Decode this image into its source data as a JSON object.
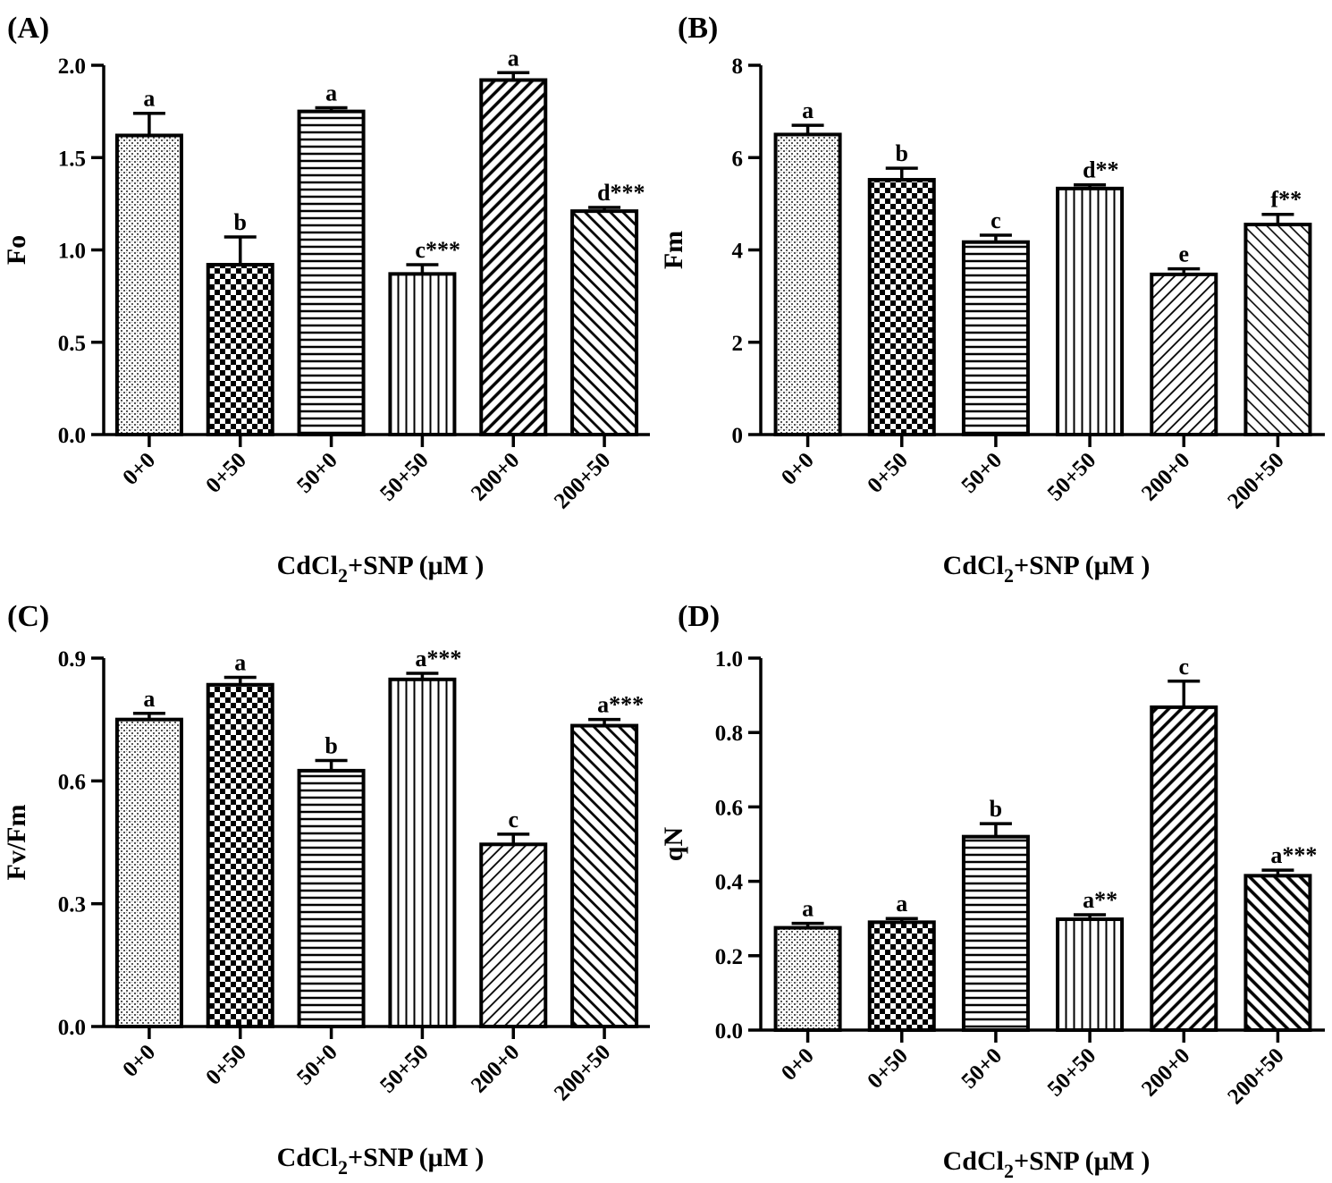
{
  "figure": {
    "shared_categories": [
      "0+0",
      "0+50",
      "50+0",
      "50+50",
      "200+0",
      "200+50"
    ],
    "x_axis_label_main": "CdCl",
    "x_axis_label_sub": "2",
    "x_axis_label_rest": "+SNP (μM )"
  },
  "chart_data": [
    {
      "panel": "(A)",
      "type": "bar",
      "ylabel": "Fo",
      "ylim": [
        0,
        2.0
      ],
      "yticks": [
        0.0,
        0.5,
        1.0,
        1.5,
        2.0
      ],
      "ytick_labels": [
        "0.0",
        "0.5",
        "1.0",
        "1.5",
        "2.0"
      ],
      "categories": [
        "0+0",
        "0+50",
        "50+0",
        "50+50",
        "200+0",
        "200+50"
      ],
      "values": [
        1.62,
        0.92,
        1.75,
        0.87,
        1.92,
        1.21
      ],
      "errors": [
        0.12,
        0.15,
        0.02,
        0.05,
        0.04,
        0.02
      ],
      "annotations": [
        "a",
        "b",
        "a",
        "c***",
        "a",
        "d***"
      ],
      "patterns": [
        "pat-fine",
        "pat-check",
        "pat-horiz",
        "pat-vert",
        "pat-diag-heavy",
        "pat-diag-back"
      ]
    },
    {
      "panel": "(B)",
      "type": "bar",
      "ylabel": "Fm",
      "ylim": [
        0,
        8
      ],
      "yticks": [
        0,
        2,
        4,
        6,
        8
      ],
      "ytick_labels": [
        "0",
        "2",
        "4",
        "6",
        "8"
      ],
      "categories": [
        "0+0",
        "0+50",
        "50+0",
        "50+50",
        "200+0",
        "200+50"
      ],
      "values": [
        6.5,
        5.52,
        4.17,
        5.33,
        3.47,
        4.55
      ],
      "errors": [
        0.2,
        0.25,
        0.15,
        0.08,
        0.12,
        0.22
      ],
      "annotations": [
        "a",
        "b",
        "c",
        "d**",
        "e",
        "f**"
      ],
      "patterns": [
        "pat-fine",
        "pat-check",
        "pat-horiz",
        "pat-vert",
        "pat-diag-light",
        "pat-diag-back-light"
      ]
    },
    {
      "panel": "(C)",
      "type": "bar",
      "ylabel": "Fv/Fm",
      "ylim": [
        0,
        0.9
      ],
      "yticks": [
        0.0,
        0.3,
        0.6,
        0.9
      ],
      "ytick_labels": [
        "0.0",
        "0.3",
        "0.6",
        "0.9"
      ],
      "categories": [
        "0+0",
        "0+50",
        "50+0",
        "50+50",
        "200+0",
        "200+50"
      ],
      "values": [
        0.75,
        0.835,
        0.625,
        0.848,
        0.445,
        0.735
      ],
      "errors": [
        0.015,
        0.018,
        0.025,
        0.015,
        0.025,
        0.015
      ],
      "annotations": [
        "a",
        "a",
        "b",
        "a***",
        "c",
        "a***"
      ],
      "patterns": [
        "pat-fine",
        "pat-check",
        "pat-horiz",
        "pat-vert",
        "pat-diag-light",
        "pat-diag-back"
      ]
    },
    {
      "panel": "(D)",
      "type": "bar",
      "ylabel": "qN",
      "ylim": [
        0,
        1.0
      ],
      "yticks": [
        0.0,
        0.2,
        0.4,
        0.6,
        0.8,
        1.0
      ],
      "ytick_labels": [
        "0.0",
        "0.2",
        "0.4",
        "0.6",
        "0.8",
        "1.0"
      ],
      "categories": [
        "0+0",
        "0+50",
        "50+0",
        "50+50",
        "200+0",
        "200+50"
      ],
      "values": [
        0.275,
        0.29,
        0.52,
        0.298,
        0.868,
        0.415
      ],
      "errors": [
        0.012,
        0.01,
        0.035,
        0.012,
        0.07,
        0.015
      ],
      "annotations": [
        "a",
        "a",
        "b",
        "a**",
        "c",
        "a***"
      ],
      "patterns": [
        "pat-fine",
        "pat-check",
        "pat-horiz",
        "pat-vert",
        "pat-diag-heavy",
        "pat-diag-back-heavy"
      ]
    }
  ]
}
